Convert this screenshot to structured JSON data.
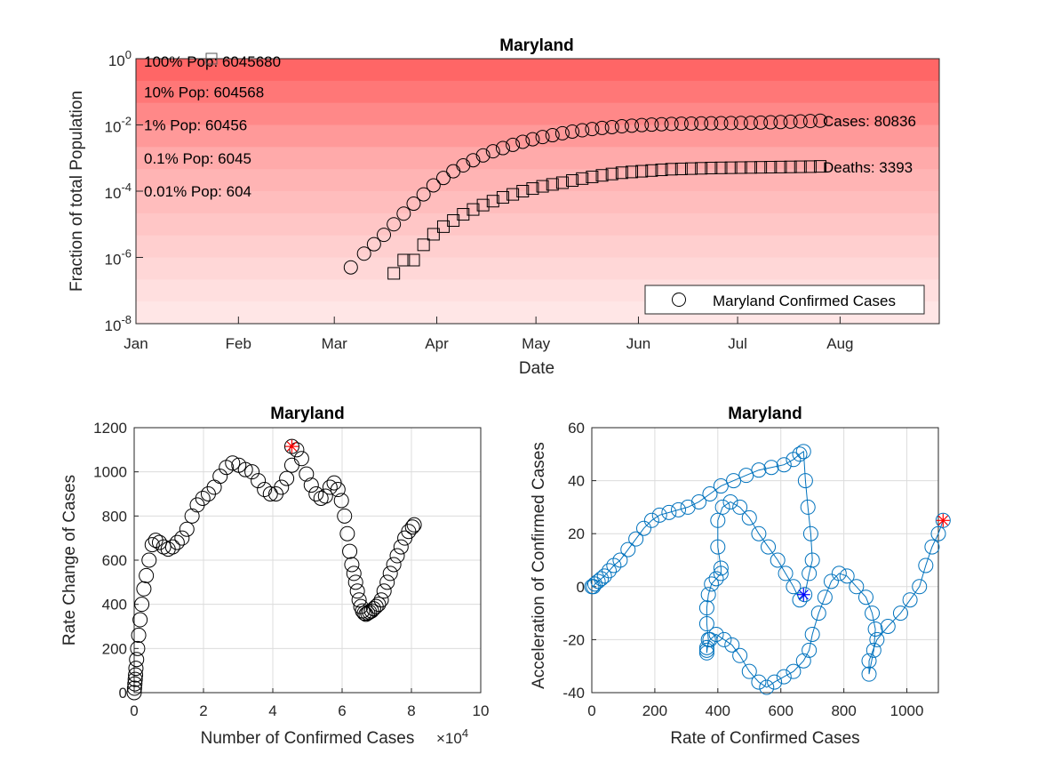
{
  "chart_data": [
    {
      "type": "scatter",
      "title": "Maryland",
      "xlabel": "Date",
      "ylabel": "Fraction of total Population",
      "yscale": "log",
      "ylim": [
        1e-08,
        1
      ],
      "xlim": [
        "2020-01-01",
        "2020-08-31"
      ],
      "x_ticks": [
        "Jan",
        "Feb",
        "Mar",
        "Apr",
        "May",
        "Jun",
        "Jul",
        "Aug"
      ],
      "x_tick_dates": [
        "2020-01-01",
        "2020-02-01",
        "2020-03-01",
        "2020-04-01",
        "2020-05-01",
        "2020-06-01",
        "2020-07-01",
        "2020-08-01"
      ],
      "y_ticks": [
        "10^0",
        "10^-2",
        "10^-4",
        "10^-6",
        "10^-8"
      ],
      "y_tick_values": [
        1,
        0.01,
        0.0001,
        1e-06,
        1e-08
      ],
      "background": "log-scale red bands by population fraction",
      "band_colors": [
        "#ff6666",
        "#ff7777",
        "#ff8888",
        "#ff9999",
        "#ffaaaa",
        "#ffb4b4",
        "#ffbdbd",
        "#ffc6c6",
        "#ffcfcf",
        "#ffd7d7",
        "#ffdfdf",
        "#ffe6e6"
      ],
      "population_labels": [
        {
          "text": "100% Pop: 6045680",
          "value": 1
        },
        {
          "text": "10% Pop: 604568",
          "value": 0.1
        },
        {
          "text": "1% Pop: 60456",
          "value": 0.01
        },
        {
          "text": "0.1% Pop: 6045",
          "value": 0.001
        },
        {
          "text": "0.01% Pop: 604",
          "value": 0.0001
        }
      ],
      "end_labels": {
        "cases": "Cases: 80836",
        "deaths": "Deaths: 3393"
      },
      "legend": {
        "label": "Maryland Confirmed Cases",
        "position": "bottom-right"
      },
      "grid": false,
      "series": [
        {
          "name": "Maryland Confirmed Cases",
          "marker": "circle",
          "x": [
            "2020-03-06",
            "2020-03-10",
            "2020-03-13",
            "2020-03-16",
            "2020-03-19",
            "2020-03-22",
            "2020-03-25",
            "2020-03-28",
            "2020-03-31",
            "2020-04-03",
            "2020-04-06",
            "2020-04-09",
            "2020-04-12",
            "2020-04-15",
            "2020-04-18",
            "2020-04-21",
            "2020-04-24",
            "2020-04-27",
            "2020-04-30",
            "2020-05-03",
            "2020-05-06",
            "2020-05-09",
            "2020-05-12",
            "2020-05-15",
            "2020-05-18",
            "2020-05-21",
            "2020-05-24",
            "2020-05-27",
            "2020-05-30",
            "2020-06-02",
            "2020-06-05",
            "2020-06-08",
            "2020-06-11",
            "2020-06-14",
            "2020-06-17",
            "2020-06-20",
            "2020-06-23",
            "2020-06-26",
            "2020-06-29",
            "2020-07-02",
            "2020-07-05",
            "2020-07-08",
            "2020-07-11",
            "2020-07-14",
            "2020-07-17",
            "2020-07-20",
            "2020-07-23",
            "2020-07-26"
          ],
          "y": [
            5e-07,
            1.3e-06,
            2.5e-06,
            4.8e-06,
            1e-05,
            2.1e-05,
            4.2e-05,
            8e-05,
            0.00015,
            0.00025,
            0.0004,
            0.0006,
            0.00086,
            0.0012,
            0.0016,
            0.002,
            0.0025,
            0.0031,
            0.0037,
            0.0043,
            0.0049,
            0.0056,
            0.0063,
            0.0069,
            0.0075,
            0.0081,
            0.0086,
            0.0091,
            0.0095,
            0.0099,
            0.0102,
            0.0105,
            0.0107,
            0.0109,
            0.011,
            0.0111,
            0.0112,
            0.0113,
            0.0114,
            0.0115,
            0.0116,
            0.0118,
            0.012,
            0.0122,
            0.0125,
            0.0128,
            0.0131,
            0.0134
          ]
        },
        {
          "name": "",
          "marker": "square",
          "x": [
            "2020-03-19",
            "2020-03-22",
            "2020-03-25",
            "2020-03-28",
            "2020-03-31",
            "2020-04-03",
            "2020-04-06",
            "2020-04-09",
            "2020-04-12",
            "2020-04-15",
            "2020-04-18",
            "2020-04-21",
            "2020-04-24",
            "2020-04-27",
            "2020-04-30",
            "2020-05-03",
            "2020-05-06",
            "2020-05-09",
            "2020-05-12",
            "2020-05-15",
            "2020-05-18",
            "2020-05-21",
            "2020-05-24",
            "2020-05-27",
            "2020-05-30",
            "2020-06-02",
            "2020-06-05",
            "2020-06-08",
            "2020-06-11",
            "2020-06-14",
            "2020-06-17",
            "2020-06-20",
            "2020-06-23",
            "2020-06-26",
            "2020-06-29",
            "2020-07-02",
            "2020-07-05",
            "2020-07-08",
            "2020-07-11",
            "2020-07-14",
            "2020-07-17",
            "2020-07-20",
            "2020-07-23",
            "2020-07-26"
          ],
          "y": [
            3.3e-07,
            8.3e-07,
            8.3e-07,
            2.4e-06,
            5e-06,
            8.5e-06,
            1.3e-05,
            2e-05,
            2.8e-05,
            3.8e-05,
            5e-05,
            6.5e-05,
            8e-05,
            0.0001,
            0.00012,
            0.00014,
            0.00016,
            0.00018,
            0.00021,
            0.00024,
            0.00027,
            0.0003,
            0.00033,
            0.00036,
            0.00038,
            0.0004,
            0.00042,
            0.00044,
            0.00046,
            0.00047,
            0.00048,
            0.00049,
            0.0005,
            0.000505,
            0.00051,
            0.000515,
            0.00052,
            0.000525,
            0.00053,
            0.000535,
            0.00054,
            0.000545,
            0.00055,
            0.00056
          ]
        }
      ]
    },
    {
      "type": "scatter",
      "title": "Maryland",
      "xlabel": "Number of Confirmed Cases",
      "ylabel": "Rate Change of Cases",
      "xlim": [
        0,
        100000
      ],
      "ylim": [
        0,
        1200
      ],
      "x_ticks": [
        "0",
        "2",
        "4",
        "6",
        "8",
        "10"
      ],
      "x_tick_values": [
        0,
        20000,
        40000,
        60000,
        80000,
        100000
      ],
      "x_exponent": "×10",
      "x_exponent_power": "4",
      "y_ticks": [
        "0",
        "200",
        "400",
        "600",
        "800",
        "1000",
        "1200"
      ],
      "y_tick_values": [
        0,
        200,
        400,
        600,
        800,
        1000,
        1200
      ],
      "grid": true,
      "marker_color": "#000000",
      "highlight": {
        "x": 45500,
        "y": 1115,
        "color": "#ff0000",
        "marker": "asterisk"
      },
      "series": [
        {
          "name": "",
          "x": [
            0,
            100,
            200,
            300,
            400,
            500,
            700,
            1000,
            1300,
            1700,
            2200,
            2800,
            3500,
            4300,
            5200,
            6200,
            7300,
            8500,
            9800,
            11100,
            12400,
            13800,
            15200,
            16700,
            18200,
            19800,
            21400,
            23100,
            24800,
            26600,
            28400,
            30200,
            32100,
            34000,
            35800,
            37600,
            39300,
            40900,
            42500,
            44000,
            45500,
            46900,
            48300,
            49700,
            51100,
            52500,
            53900,
            55200,
            56500,
            57700,
            58800,
            59800,
            60700,
            61500,
            62200,
            62800,
            63400,
            63900,
            64400,
            64900,
            65400,
            65900,
            66400,
            66900,
            67400,
            67900,
            68500,
            69100,
            69800,
            70500,
            71300,
            72100,
            73000,
            73900,
            74900,
            75900,
            77000,
            78100,
            79200,
            80300,
            80800
          ],
          "y": [
            0,
            20,
            40,
            60,
            80,
            110,
            150,
            200,
            260,
            330,
            400,
            470,
            530,
            600,
            670,
            690,
            680,
            660,
            650,
            660,
            680,
            700,
            740,
            800,
            850,
            880,
            900,
            930,
            980,
            1020,
            1040,
            1030,
            1010,
            1000,
            960,
            920,
            900,
            900,
            930,
            970,
            1030,
            1100,
            1060,
            990,
            940,
            900,
            880,
            890,
            930,
            950,
            920,
            870,
            800,
            720,
            640,
            580,
            540,
            500,
            460,
            420,
            390,
            370,
            360,
            355,
            360,
            365,
            370,
            380,
            390,
            400,
            420,
            460,
            500,
            540,
            580,
            620,
            660,
            700,
            730,
            750,
            760
          ]
        }
      ]
    },
    {
      "type": "scatter",
      "title": "Maryland",
      "xlabel": "Rate of Confirmed Cases",
      "ylabel": "Acceleration of Confirmed Cases",
      "xlim": [
        0,
        1100
      ],
      "ylim": [
        -40,
        60
      ],
      "x_ticks": [
        "0",
        "200",
        "400",
        "600",
        "800",
        "1000"
      ],
      "x_tick_values": [
        0,
        200,
        400,
        600,
        800,
        1000
      ],
      "y_ticks": [
        "-40",
        "-20",
        "0",
        "20",
        "40",
        "60"
      ],
      "y_tick_values": [
        -40,
        -20,
        0,
        20,
        40,
        60
      ],
      "grid": true,
      "line_color": "#0072bd",
      "start_marker": {
        "x": 672,
        "y": -3,
        "color": "#0000ff",
        "marker": "asterisk"
      },
      "end_marker": {
        "x": 1115,
        "y": 25,
        "color": "#ff0000",
        "marker": "asterisk"
      },
      "series": [
        {
          "name": "",
          "x": [
            0,
            5,
            10,
            20,
            30,
            40,
            55,
            70,
            90,
            115,
            140,
            165,
            190,
            215,
            245,
            275,
            305,
            340,
            375,
            410,
            450,
            490,
            530,
            570,
            610,
            640,
            660,
            672,
            678,
            686,
            695,
            700,
            690,
            676,
            660,
            640,
            615,
            590,
            560,
            530,
            500,
            470,
            440,
            415,
            400,
            400,
            410,
            410,
            395,
            380,
            370,
            365,
            365,
            370,
            365,
            365,
            365,
            375,
            395,
            420,
            445,
            470,
            500,
            530,
            555,
            580,
            610,
            640,
            672,
            690,
            700,
            720,
            740,
            760,
            785,
            810,
            840,
            870,
            890,
            900,
            895,
            880,
            880,
            905,
            940,
            980,
            1010,
            1040,
            1060,
            1080,
            1100,
            1115
          ],
          "y": [
            0,
            0,
            1,
            2,
            3,
            4,
            6,
            8,
            10,
            14,
            18,
            22,
            25,
            27,
            28,
            29,
            30,
            32,
            35,
            38,
            40,
            42,
            44,
            45,
            46,
            48,
            50,
            51,
            40,
            30,
            20,
            10,
            5,
            -3,
            -5,
            0,
            5,
            10,
            15,
            20,
            26,
            30,
            32,
            30,
            25,
            15,
            7,
            5,
            3,
            1,
            -3,
            -8,
            -14,
            -20,
            -25,
            -24,
            -23,
            -20,
            -18,
            -20,
            -22,
            -26,
            -32,
            -36,
            -38,
            -36,
            -34,
            -32,
            -28,
            -24,
            -18,
            -10,
            -4,
            2,
            5,
            4,
            0,
            -4,
            -10,
            -16,
            -24,
            -33,
            -28,
            -20,
            -15,
            -10,
            -5,
            0,
            8,
            15,
            20,
            25
          ]
        }
      ]
    }
  ]
}
